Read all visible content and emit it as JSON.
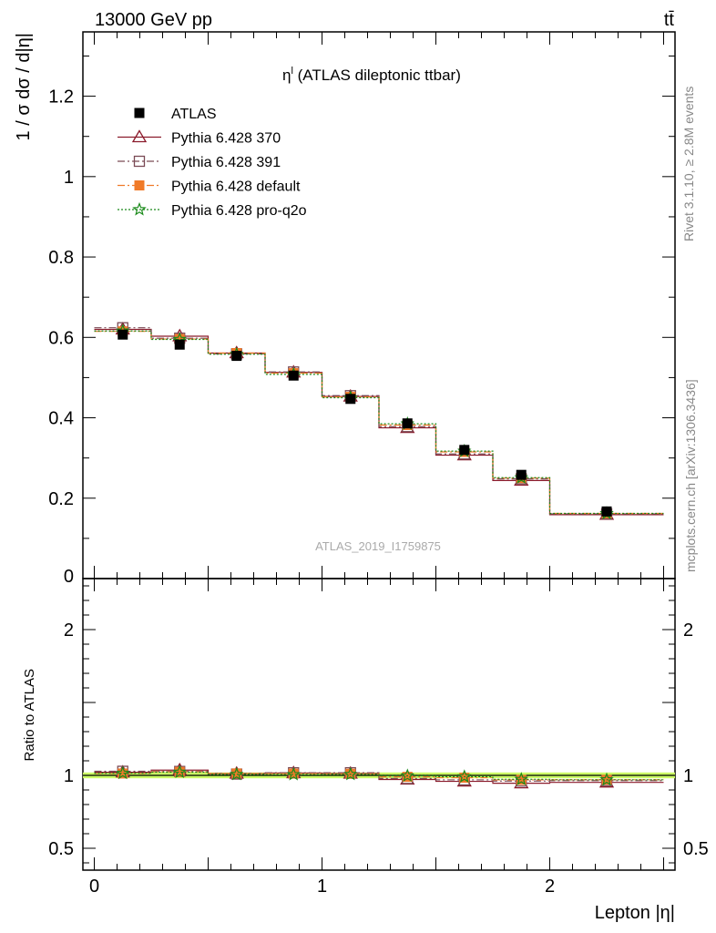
{
  "header": {
    "left": "13000 GeV pp",
    "right": "tt̄"
  },
  "side_text": {
    "rivet": "Rivet 3.1.10, ≥ 2.8M events",
    "mcplots": "mcplots.cern.ch [arXiv:1306.3436]"
  },
  "chart_data": [
    {
      "type": "line",
      "title": "η",
      "title_sup": "l",
      "title_suffix": " (ATLAS dileptonic ttbar)",
      "ylabel": "1 / σ  dσ / d|η|",
      "xlabel": "Lepton |η|",
      "xlim": [
        -0.05,
        2.55
      ],
      "ylim": [
        0,
        1.36
      ],
      "yticks": [
        "0",
        "0.2",
        "0.4",
        "0.6",
        "0.8",
        "1",
        "1.2"
      ],
      "watermark": "ATLAS_2019_I1759875",
      "legend_position": "top-left",
      "x": [
        0.125,
        0.375,
        0.625,
        0.875,
        1.125,
        1.375,
        1.625,
        1.875,
        2.25
      ],
      "x_err": [
        0.125,
        0.125,
        0.125,
        0.125,
        0.125,
        0.125,
        0.125,
        0.125,
        0.25
      ],
      "series": [
        {
          "name": "ATLAS",
          "color": "#000000",
          "marker": "square-filled",
          "values": [
            0.607,
            0.582,
            0.554,
            0.505,
            0.447,
            0.386,
            0.32,
            0.258,
            0.167
          ]
        },
        {
          "name": "Pythia 6.428 370",
          "color": "#8b1a2b",
          "marker": "triangle-open",
          "line": "solid",
          "values": [
            0.62,
            0.603,
            0.561,
            0.513,
            0.453,
            0.375,
            0.307,
            0.244,
            0.159
          ]
        },
        {
          "name": "Pythia 6.428 391",
          "color": "#7a4a55",
          "marker": "square-open",
          "line": "dashdot",
          "values": [
            0.624,
            0.598,
            0.559,
            0.514,
            0.455,
            0.378,
            0.31,
            0.248,
            0.161
          ]
        },
        {
          "name": "Pythia 6.428 default",
          "color": "#f07a28",
          "marker": "square-filled",
          "line": "dashdot",
          "values": [
            0.615,
            0.596,
            0.561,
            0.511,
            0.452,
            0.382,
            0.315,
            0.25,
            0.162
          ]
        },
        {
          "name": "Pythia 6.428 pro-q2o",
          "color": "#1a8a1a",
          "marker": "star-open",
          "line": "dotted",
          "values": [
            0.616,
            0.595,
            0.558,
            0.508,
            0.45,
            0.385,
            0.317,
            0.251,
            0.162
          ]
        }
      ]
    },
    {
      "type": "line",
      "ylabel": "Ratio to ATLAS",
      "ylim": [
        0.35,
        2.35
      ],
      "yticks": [
        "0.5",
        "1",
        "2"
      ],
      "xticks": [
        "0",
        "1",
        "2"
      ],
      "band": {
        "color": "#ccff66",
        "half_width": 0.02
      },
      "series": [
        {
          "name": "Pythia 6.428 370",
          "values": [
            1.021,
            1.036,
            1.013,
            1.016,
            1.013,
            0.972,
            0.959,
            0.946,
            0.952
          ]
        },
        {
          "name": "Pythia 6.428 391",
          "values": [
            1.028,
            1.027,
            1.009,
            1.018,
            1.018,
            0.979,
            0.969,
            0.961,
            0.964
          ]
        },
        {
          "name": "Pythia 6.428 default",
          "values": [
            1.013,
            1.024,
            1.013,
            1.012,
            1.011,
            0.99,
            0.984,
            0.969,
            0.97
          ]
        },
        {
          "name": "Pythia 6.428 pro-q2o",
          "values": [
            1.015,
            1.022,
            1.007,
            1.006,
            1.007,
            0.997,
            0.991,
            0.973,
            0.97
          ]
        }
      ]
    }
  ]
}
